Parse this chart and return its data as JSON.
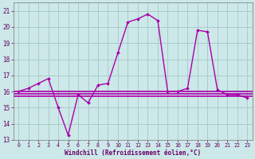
{
  "xlabel": "Windchill (Refroidissement éolien,°C)",
  "xlim": [
    -0.5,
    23.5
  ],
  "ylim": [
    13,
    21.5
  ],
  "yticks": [
    13,
    14,
    15,
    16,
    17,
    18,
    19,
    20,
    21
  ],
  "xticks": [
    0,
    1,
    2,
    3,
    4,
    5,
    6,
    7,
    8,
    9,
    10,
    11,
    12,
    13,
    14,
    15,
    16,
    17,
    18,
    19,
    20,
    21,
    22,
    23
  ],
  "bg_color": "#cce8e8",
  "grid_color": "#aacccc",
  "line_color": "#aa00aa",
  "font_color": "#660066",
  "series1_x": [
    0,
    1,
    2,
    3,
    4,
    5,
    6,
    7,
    8,
    9,
    10,
    11,
    12,
    13,
    14,
    15,
    16,
    17,
    18,
    19,
    20,
    21,
    22,
    23
  ],
  "series1_y": [
    16.0,
    16.2,
    16.5,
    16.8,
    15.0,
    13.3,
    15.8,
    15.3,
    16.4,
    16.5,
    18.4,
    20.3,
    20.5,
    20.8,
    20.4,
    16.0,
    16.0,
    16.2,
    19.8,
    19.7,
    16.1,
    15.8,
    15.8,
    15.6
  ],
  "hline1_y": 16.0,
  "hline2_y": 15.85,
  "hline3_y": 15.7
}
